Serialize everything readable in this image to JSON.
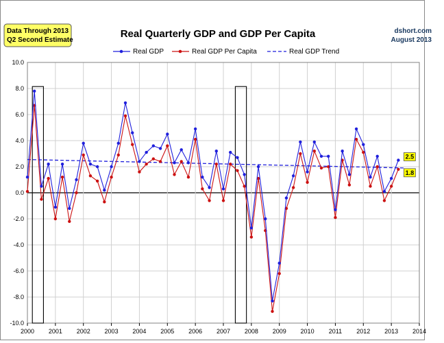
{
  "note_box": {
    "line1": "Data Through 2013",
    "line2": "Q2 Second Estimate"
  },
  "source": {
    "line1": "dshort.com",
    "line2": "August 2013"
  },
  "colors": {
    "gdp": "#1f1fdc",
    "gdp_per_capita": "#cc1111",
    "trend": "#1f1fdc",
    "note_bg": "#ffff66",
    "label_bg": "#ffff00"
  },
  "chart_data": {
    "type": "line",
    "title": "Real Quarterly GDP and GDP Per Capita",
    "xlabel": "",
    "ylabel": "",
    "ylim": [
      -10,
      10
    ],
    "y_ticks": [
      "10.0",
      "8.0",
      "6.0",
      "4.0",
      "2.0",
      "0.0",
      "-2.0",
      "-4.0",
      "-6.0",
      "-8.0",
      "-10.0"
    ],
    "xlim": [
      2000,
      2014
    ],
    "x_ticks": [
      "2000",
      "2001",
      "2002",
      "2003",
      "2004",
      "2005",
      "2006",
      "2007",
      "2008",
      "2009",
      "2010",
      "2011",
      "2012",
      "2013",
      "2014"
    ],
    "grid": true,
    "legend_position": "top",
    "start_year": 2000,
    "series": [
      {
        "name": "Real GDP",
        "style": "line-dot",
        "values": [
          1.2,
          7.8,
          0.5,
          2.2,
          -1.1,
          2.2,
          -1.2,
          1.0,
          3.8,
          2.2,
          2.0,
          0.2,
          2.0,
          3.8,
          6.9,
          4.6,
          2.4,
          3.1,
          3.6,
          3.4,
          4.5,
          2.3,
          3.3,
          2.3,
          4.9,
          1.2,
          0.4,
          3.2,
          0.3,
          3.1,
          2.7,
          1.4,
          -2.7,
          2.0,
          -2.0,
          -8.3,
          -5.4,
          -0.4,
          1.3,
          3.9,
          1.6,
          3.9,
          2.8,
          2.8,
          -1.3,
          3.2,
          1.4,
          4.9,
          3.7,
          1.2,
          2.8,
          0.1,
          1.1,
          2.5
        ]
      },
      {
        "name": "Real GDP Per Capita",
        "style": "line-dot",
        "values": [
          0.1,
          6.7,
          -0.5,
          1.1,
          -2.0,
          1.2,
          -2.2,
          0.0,
          2.9,
          1.3,
          0.9,
          -0.7,
          1.2,
          2.9,
          5.9,
          3.7,
          1.6,
          2.2,
          2.6,
          2.4,
          3.6,
          1.4,
          2.4,
          1.2,
          4.1,
          0.3,
          -0.6,
          2.2,
          -0.6,
          2.2,
          1.7,
          0.5,
          -3.4,
          1.1,
          -2.9,
          -9.1,
          -6.2,
          -1.2,
          0.4,
          3.0,
          0.8,
          3.2,
          1.9,
          2.0,
          -1.9,
          2.5,
          0.6,
          4.1,
          3.1,
          0.5,
          2.0,
          -0.6,
          0.5,
          1.8
        ]
      },
      {
        "name": "Real GDP Trend",
        "style": "dashed",
        "x": [
          2000,
          2013.5
        ],
        "values": [
          2.55,
          1.9
        ]
      }
    ],
    "end_labels": [
      "2.5",
      "1.8"
    ],
    "recessions": [
      [
        2000.25,
        2000.5
      ],
      [
        2007.5,
        2007.75
      ]
    ]
  }
}
